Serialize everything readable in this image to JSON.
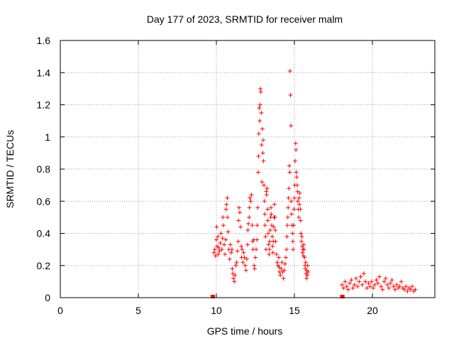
{
  "chart_data": {
    "type": "scatter",
    "title": "Day 177 of 2023, SRMTID for receiver malm",
    "xlabel": "GPS time / hours",
    "ylabel": "SRMTID / TECUs",
    "xlim": [
      0,
      24
    ],
    "ylim": [
      0,
      1.6
    ],
    "grid": true,
    "marker": "+",
    "color": "#ff0000",
    "x_ticks": [
      {
        "value": 0,
        "label": "0"
      },
      {
        "value": 5,
        "label": "5"
      },
      {
        "value": 10,
        "label": "10"
      },
      {
        "value": 15,
        "label": "15"
      },
      {
        "value": 20,
        "label": "20"
      }
    ],
    "y_ticks": [
      {
        "value": 0,
        "label": "0"
      },
      {
        "value": 0.2,
        "label": "0.2"
      },
      {
        "value": 0.4,
        "label": "0.4"
      },
      {
        "value": 0.6,
        "label": "0.6"
      },
      {
        "value": 0.8,
        "label": "0.8"
      },
      {
        "value": 1.0,
        "label": "1"
      },
      {
        "value": 1.2,
        "label": "1.2"
      },
      {
        "value": 1.4,
        "label": "1.4"
      },
      {
        "value": 1.6,
        "label": "1.6"
      }
    ],
    "series": [
      {
        "name": "SRMTID",
        "points": [
          [
            9.75,
            0.0
          ],
          [
            9.8,
            0.0
          ],
          [
            18.05,
            0.0
          ],
          [
            18.1,
            0.0
          ],
          [
            9.85,
            0.28
          ],
          [
            9.9,
            0.3
          ],
          [
            9.95,
            0.26
          ],
          [
            10.0,
            0.36
          ],
          [
            10.02,
            0.44
          ],
          [
            10.05,
            0.32
          ],
          [
            10.1,
            0.38
          ],
          [
            10.12,
            0.27
          ],
          [
            10.15,
            0.31
          ],
          [
            10.2,
            0.29
          ],
          [
            10.25,
            0.34
          ],
          [
            10.3,
            0.4
          ],
          [
            10.35,
            0.3
          ],
          [
            10.4,
            0.37
          ],
          [
            10.42,
            0.5
          ],
          [
            10.45,
            0.45
          ],
          [
            10.5,
            0.33
          ],
          [
            10.55,
            0.27
          ],
          [
            10.6,
            0.36
          ],
          [
            10.62,
            0.55
          ],
          [
            10.65,
            0.58
          ],
          [
            10.7,
            0.62
          ],
          [
            10.72,
            0.5
          ],
          [
            10.75,
            0.41
          ],
          [
            10.8,
            0.3
          ],
          [
            10.85,
            0.24
          ],
          [
            10.9,
            0.33
          ],
          [
            10.95,
            0.28
          ],
          [
            11.0,
            0.3
          ],
          [
            11.02,
            0.18
          ],
          [
            11.05,
            0.15
          ],
          [
            11.1,
            0.12
          ],
          [
            11.15,
            0.1
          ],
          [
            11.2,
            0.14
          ],
          [
            11.25,
            0.2
          ],
          [
            11.3,
            0.22
          ],
          [
            11.35,
            0.29
          ],
          [
            11.4,
            0.35
          ],
          [
            11.42,
            0.48
          ],
          [
            11.45,
            0.56
          ],
          [
            11.5,
            0.53
          ],
          [
            11.55,
            0.44
          ],
          [
            11.6,
            0.32
          ],
          [
            11.62,
            0.25
          ],
          [
            11.65,
            0.3
          ],
          [
            11.7,
            0.22
          ],
          [
            11.75,
            0.28
          ],
          [
            11.8,
            0.25
          ],
          [
            11.85,
            0.2
          ],
          [
            11.9,
            0.17
          ],
          [
            11.95,
            0.24
          ],
          [
            12.0,
            0.33
          ],
          [
            12.02,
            0.42
          ],
          [
            12.05,
            0.46
          ],
          [
            12.1,
            0.5
          ],
          [
            12.12,
            0.56
          ],
          [
            12.15,
            0.62
          ],
          [
            12.2,
            0.6
          ],
          [
            12.25,
            0.64
          ],
          [
            12.3,
            0.45
          ],
          [
            12.32,
            0.35
          ],
          [
            12.35,
            0.3
          ],
          [
            12.4,
            0.36
          ],
          [
            12.42,
            0.2
          ],
          [
            12.45,
            0.18
          ],
          [
            12.5,
            0.25
          ],
          [
            12.55,
            0.3
          ],
          [
            12.6,
            0.36
          ],
          [
            12.62,
            0.45
          ],
          [
            12.65,
            0.56
          ],
          [
            12.68,
            0.78
          ],
          [
            12.7,
            0.88
          ],
          [
            12.72,
            1.02
          ],
          [
            12.75,
            1.18
          ],
          [
            12.78,
            1.1
          ],
          [
            12.8,
            1.2
          ],
          [
            12.82,
            1.3
          ],
          [
            12.85,
            1.28
          ],
          [
            12.88,
            1.15
          ],
          [
            12.9,
            0.95
          ],
          [
            12.92,
            0.72
          ],
          [
            12.95,
            1.05
          ],
          [
            12.98,
            0.9
          ],
          [
            13.0,
            0.98
          ],
          [
            13.02,
            0.85
          ],
          [
            13.05,
            0.7
          ],
          [
            13.08,
            0.6
          ],
          [
            13.1,
            0.52
          ],
          [
            13.12,
            0.45
          ],
          [
            13.15,
            0.38
          ],
          [
            13.18,
            0.3
          ],
          [
            13.2,
            0.66
          ],
          [
            13.22,
            0.64
          ],
          [
            13.25,
            0.68
          ],
          [
            13.28,
            0.55
          ],
          [
            13.3,
            0.48
          ],
          [
            13.32,
            0.4
          ],
          [
            13.35,
            0.33
          ],
          [
            13.38,
            0.27
          ],
          [
            13.4,
            0.3
          ],
          [
            13.42,
            0.35
          ],
          [
            13.45,
            0.42
          ],
          [
            13.48,
            0.5
          ],
          [
            13.5,
            0.56
          ],
          [
            13.52,
            0.52
          ],
          [
            13.55,
            0.45
          ],
          [
            13.58,
            0.38
          ],
          [
            13.6,
            0.32
          ],
          [
            13.62,
            0.28
          ],
          [
            13.65,
            0.35
          ],
          [
            13.68,
            0.44
          ],
          [
            13.7,
            0.5
          ],
          [
            13.72,
            0.58
          ],
          [
            13.75,
            0.5
          ],
          [
            13.78,
            0.42
          ],
          [
            13.8,
            0.35
          ],
          [
            13.85,
            0.27
          ],
          [
            13.9,
            0.22
          ],
          [
            13.95,
            0.2
          ],
          [
            14.0,
            0.25
          ],
          [
            14.02,
            0.19
          ],
          [
            14.05,
            0.16
          ],
          [
            14.1,
            0.14
          ],
          [
            14.15,
            0.18
          ],
          [
            14.2,
            0.22
          ],
          [
            14.25,
            0.16
          ],
          [
            14.3,
            0.12
          ],
          [
            14.35,
            0.17
          ],
          [
            14.4,
            0.21
          ],
          [
            14.45,
            0.25
          ],
          [
            14.5,
            0.3
          ],
          [
            14.52,
            0.38
          ],
          [
            14.55,
            0.45
          ],
          [
            14.58,
            0.5
          ],
          [
            14.6,
            0.56
          ],
          [
            14.62,
            0.62
          ],
          [
            14.65,
            0.68
          ],
          [
            14.68,
            0.82
          ],
          [
            14.7,
            0.78
          ],
          [
            14.72,
            1.41
          ],
          [
            14.75,
            1.26
          ],
          [
            14.78,
            1.07
          ],
          [
            14.8,
            0.6
          ],
          [
            14.82,
            0.52
          ],
          [
            14.85,
            0.45
          ],
          [
            14.88,
            0.4
          ],
          [
            14.9,
            0.35
          ],
          [
            14.92,
            0.3
          ],
          [
            14.95,
            0.45
          ],
          [
            14.98,
            0.55
          ],
          [
            15.0,
            0.62
          ],
          [
            15.02,
            0.7
          ],
          [
            15.05,
            0.85
          ],
          [
            15.08,
            0.96
          ],
          [
            15.1,
            0.92
          ],
          [
            15.12,
            0.78
          ],
          [
            15.15,
            0.75
          ],
          [
            15.18,
            0.7
          ],
          [
            15.2,
            0.66
          ],
          [
            15.22,
            0.6
          ],
          [
            15.25,
            0.55
          ],
          [
            15.28,
            0.5
          ],
          [
            15.3,
            0.62
          ],
          [
            15.32,
            0.58
          ],
          [
            15.35,
            0.65
          ],
          [
            15.38,
            0.55
          ],
          [
            15.4,
            0.48
          ],
          [
            15.42,
            0.4
          ],
          [
            15.45,
            0.35
          ],
          [
            15.48,
            0.38
          ],
          [
            15.5,
            0.32
          ],
          [
            15.52,
            0.28
          ],
          [
            15.55,
            0.3
          ],
          [
            15.58,
            0.26
          ],
          [
            15.6,
            0.33
          ],
          [
            15.62,
            0.3
          ],
          [
            15.65,
            0.25
          ],
          [
            15.68,
            0.2
          ],
          [
            15.7,
            0.18
          ],
          [
            15.72,
            0.22
          ],
          [
            15.75,
            0.15
          ],
          [
            15.78,
            0.12
          ],
          [
            15.8,
            0.17
          ],
          [
            15.82,
            0.14
          ],
          [
            15.85,
            0.2
          ],
          [
            15.88,
            0.16
          ],
          [
            18.05,
            0.08
          ],
          [
            18.15,
            0.06
          ],
          [
            18.25,
            0.1
          ],
          [
            18.35,
            0.07
          ],
          [
            18.45,
            0.05
          ],
          [
            18.55,
            0.09
          ],
          [
            18.65,
            0.11
          ],
          [
            18.75,
            0.06
          ],
          [
            18.85,
            0.08
          ],
          [
            18.95,
            0.12
          ],
          [
            19.05,
            0.07
          ],
          [
            19.15,
            0.1
          ],
          [
            19.25,
            0.13
          ],
          [
            19.35,
            0.08
          ],
          [
            19.45,
            0.15
          ],
          [
            19.55,
            0.1
          ],
          [
            19.65,
            0.06
          ],
          [
            19.75,
            0.09
          ],
          [
            19.85,
            0.07
          ],
          [
            19.95,
            0.1
          ],
          [
            20.05,
            0.06
          ],
          [
            20.15,
            0.08
          ],
          [
            20.25,
            0.11
          ],
          [
            20.35,
            0.09
          ],
          [
            20.45,
            0.13
          ],
          [
            20.55,
            0.07
          ],
          [
            20.65,
            0.05
          ],
          [
            20.75,
            0.1
          ],
          [
            20.85,
            0.12
          ],
          [
            20.95,
            0.08
          ],
          [
            21.05,
            0.06
          ],
          [
            21.15,
            0.09
          ],
          [
            21.25,
            0.11
          ],
          [
            21.35,
            0.07
          ],
          [
            21.45,
            0.05
          ],
          [
            21.55,
            0.08
          ],
          [
            21.65,
            0.06
          ],
          [
            21.75,
            0.07
          ],
          [
            21.85,
            0.1
          ],
          [
            21.95,
            0.06
          ],
          [
            22.05,
            0.05
          ],
          [
            22.15,
            0.07
          ],
          [
            22.25,
            0.04
          ],
          [
            22.35,
            0.06
          ],
          [
            22.45,
            0.05
          ],
          [
            22.55,
            0.07
          ],
          [
            22.65,
            0.04
          ],
          [
            22.75,
            0.05
          ]
        ]
      }
    ]
  }
}
